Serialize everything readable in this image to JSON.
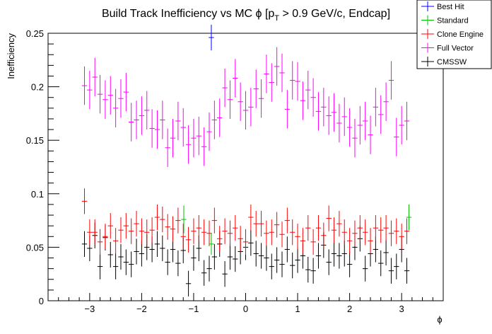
{
  "chart_data": {
    "type": "scatter",
    "title_main": "Build Track Inefficiency vs MC ",
    "title_phi": "ϕ",
    "title_bracket": " [p",
    "title_sub": "T",
    "title_rest": " > 0.9 GeV/c, Endcap]",
    "xlabel": "ϕ",
    "ylabel": "Inefficiency",
    "xlim": [
      -3.8,
      3.8
    ],
    "ylim": [
      0,
      0.25
    ],
    "xticks": [
      -3,
      -2,
      -1,
      0,
      1,
      2,
      3
    ],
    "xtick_labels": [
      "−3",
      "−2",
      "−1",
      "0",
      "1",
      "2",
      "3"
    ],
    "yticks": [
      0,
      0.05,
      0.1,
      0.15,
      0.2,
      0.25
    ],
    "ytick_labels": [
      "0",
      "0.05",
      "0.1",
      "0.15",
      "0.2",
      "0.25"
    ],
    "legend_position": "top-right",
    "series": [
      {
        "name": "Best Hit",
        "color": "#0000ff",
        "points": [
          {
            "x": -0.66,
            "y": 0.246,
            "err": 0.012
          }
        ]
      },
      {
        "name": "Standard",
        "color": "#00c000",
        "points": [
          {
            "x": -1.19,
            "y": 0.076,
            "err": 0.013
          },
          {
            "x": -0.66,
            "y": 0.053,
            "err": 0.01
          },
          {
            "x": 3.14,
            "y": 0.078,
            "err": 0.012
          }
        ]
      },
      {
        "name": "Clone Engine",
        "color": "#ff0000",
        "x_start": -3.1,
        "x_step": 0.1,
        "err": 0.012,
        "values": [
          0.093,
          0.064,
          0.064,
          0.055,
          0.06,
          0.07,
          0.056,
          0.066,
          0.07,
          0.065,
          0.072,
          0.065,
          0.064,
          0.066,
          0.078,
          0.076,
          0.069,
          0.067,
          0.075,
          0.06,
          0.057,
          0.065,
          0.068,
          0.064,
          0.063,
          0.075,
          0.058,
          0.065,
          0.063,
          0.068,
          0.058,
          0.055,
          0.078,
          0.072,
          0.072,
          0.063,
          0.064,
          0.071,
          0.062,
          0.075,
          0.064,
          0.06,
          0.056,
          0.068,
          0.055,
          0.068,
          0.061,
          0.077,
          0.066,
          0.072,
          0.064,
          0.056,
          0.063,
          0.068,
          0.064,
          0.056,
          0.068,
          0.066,
          0.068,
          0.063,
          0.065,
          0.06,
          0.065
        ]
      },
      {
        "name": "Full Vector",
        "color": "#ff00ff",
        "x_start": -3.1,
        "x_step": 0.1,
        "err": 0.018,
        "values": [
          0.201,
          0.197,
          0.209,
          0.193,
          0.188,
          0.192,
          0.18,
          0.189,
          0.195,
          0.167,
          0.169,
          0.173,
          0.178,
          0.161,
          0.16,
          0.169,
          0.143,
          0.152,
          0.168,
          0.162,
          0.146,
          0.152,
          0.154,
          0.144,
          0.158,
          0.169,
          0.171,
          0.199,
          0.188,
          0.208,
          0.186,
          0.178,
          0.181,
          0.198,
          0.189,
          0.212,
          0.204,
          0.219,
          0.213,
          0.179,
          0.206,
          0.205,
          0.187,
          0.197,
          0.19,
          0.177,
          0.181,
          0.173,
          0.176,
          0.166,
          0.172,
          0.162,
          0.152,
          0.164,
          0.168,
          0.155,
          0.181,
          0.174,
          0.186,
          0.206,
          0.153,
          0.164,
          0.168
        ]
      },
      {
        "name": "CMSSW",
        "color": "#000000",
        "x_start": -3.1,
        "x_step": 0.1,
        "err": 0.012,
        "values": [
          0.053,
          0.049,
          0.061,
          0.032,
          0.059,
          0.043,
          0.032,
          0.041,
          0.036,
          0.034,
          0.046,
          0.044,
          0.05,
          0.048,
          0.053,
          0.049,
          0.036,
          0.048,
          0.035,
          0.047,
          0.016,
          0.04,
          0.049,
          0.026,
          0.03,
          0.041,
          0.053,
          0.025,
          0.041,
          0.039,
          0.046,
          0.05,
          0.054,
          0.044,
          0.042,
          0.04,
          0.032,
          0.038,
          0.034,
          0.048,
          0.033,
          0.038,
          0.042,
          0.029,
          0.028,
          0.042,
          0.052,
          0.036,
          0.044,
          0.042,
          0.044,
          0.034,
          0.05,
          0.058,
          0.03,
          0.044,
          0.048,
          0.035,
          0.045,
          0.028,
          0.032,
          0.048,
          0.028
        ]
      }
    ]
  }
}
